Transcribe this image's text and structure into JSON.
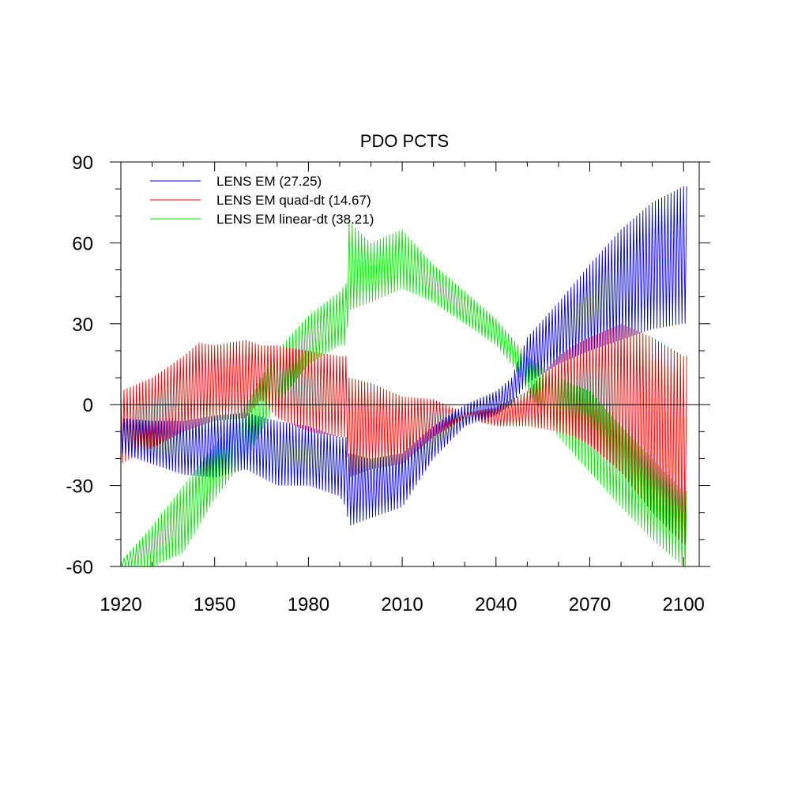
{
  "chart_data": {
    "type": "line",
    "title": "PDO PCTS",
    "xlabel": "",
    "ylabel": "",
    "xlim": [
      1920,
      2101
    ],
    "ylim": [
      -60,
      90
    ],
    "xticks": [
      "1920",
      "1950",
      "1980",
      "2010",
      "2040",
      "2070",
      "2100"
    ],
    "yticks": [
      "90",
      "60",
      "30",
      "0",
      "-30",
      "-60"
    ],
    "reference_line": 0,
    "grid": false,
    "legend_position": "top-left",
    "series": [
      {
        "name": "LENS EM (27.25)",
        "color": "#0000cc",
        "year": [
          1920,
          1930,
          1940,
          1950,
          1960,
          1970,
          1980,
          1990,
          1992,
          1993,
          2000,
          2010,
          2020,
          2030,
          2040,
          2045,
          2050,
          2060,
          2070,
          2080,
          2090,
          2100
        ],
        "upper": [
          -5,
          -6,
          -6,
          -4,
          -3,
          -6,
          -8,
          -12,
          -12,
          -18,
          -20,
          -18,
          -8,
          0,
          5,
          10,
          25,
          38,
          52,
          65,
          75,
          81
        ],
        "lower": [
          -18,
          -22,
          -26,
          -27,
          -24,
          -30,
          -30,
          -34,
          -38,
          -45,
          -42,
          -38,
          -20,
          -8,
          -4,
          0,
          8,
          15,
          20,
          24,
          28,
          30
        ]
      },
      {
        "name": "LENS EM quad-dt (14.67)",
        "color": "#e60000",
        "year": [
          1920,
          1930,
          1940,
          1945,
          1950,
          1960,
          1965,
          1970,
          1980,
          1990,
          1992,
          1993,
          2000,
          2010,
          2020,
          2030,
          2040,
          2050,
          2060,
          2065,
          2070,
          2080,
          2090,
          2100
        ],
        "upper": [
          5,
          10,
          18,
          23,
          22,
          24,
          22,
          22,
          20,
          18,
          18,
          10,
          8,
          3,
          2,
          -3,
          -1,
          5,
          18,
          22,
          25,
          30,
          25,
          18
        ],
        "lower": [
          -22,
          -16,
          -10,
          -8,
          -6,
          -5,
          2,
          -5,
          -10,
          -12,
          -12,
          -27,
          -24,
          -22,
          -12,
          -5,
          -8,
          -8,
          -10,
          -12,
          -15,
          -25,
          -40,
          -52
        ]
      },
      {
        "name": "LENS EM linear-dt (38.21)",
        "color": "#00e600",
        "year": [
          1920,
          1930,
          1940,
          1950,
          1960,
          1970,
          1980,
          1990,
          1992,
          1993,
          2000,
          2010,
          2020,
          2030,
          2040,
          2045,
          2050,
          2060,
          2070,
          2080,
          2090,
          2100
        ],
        "upper": [
          -58,
          -45,
          -30,
          -15,
          0,
          20,
          33,
          42,
          45,
          68,
          60,
          65,
          52,
          42,
          32,
          25,
          18,
          10,
          5,
          -8,
          -20,
          -32
        ],
        "lower": [
          -60,
          -60,
          -55,
          -35,
          -20,
          0,
          15,
          22,
          22,
          35,
          38,
          43,
          38,
          30,
          22,
          15,
          5,
          -12,
          -25,
          -38,
          -50,
          -60
        ]
      }
    ]
  }
}
